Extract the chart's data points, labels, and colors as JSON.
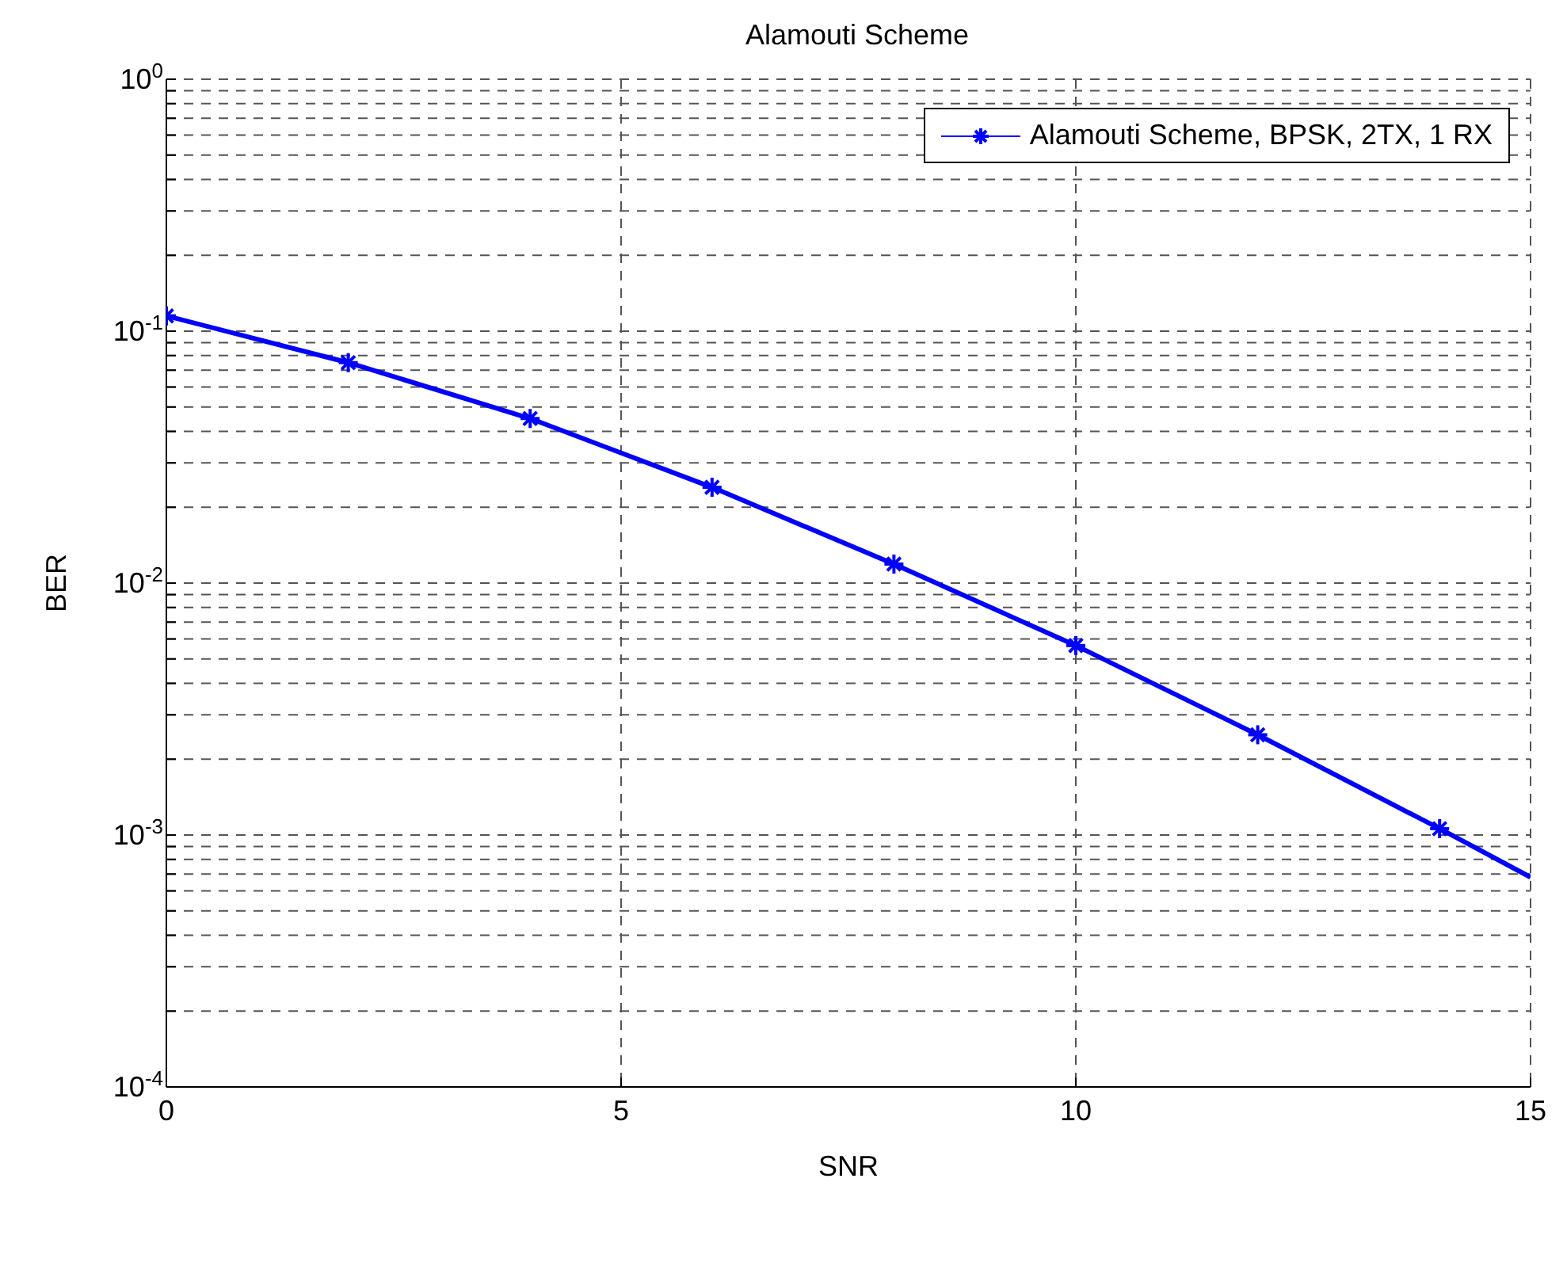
{
  "chart_data": {
    "type": "line",
    "title": "Alamouti Scheme",
    "xlabel": "SNR",
    "ylabel": "BER",
    "x": [
      0,
      2,
      4,
      6,
      8,
      10,
      12,
      14,
      15
    ],
    "series": [
      {
        "name": "Alamouti Scheme, BPSK, 2TX, 1 RX",
        "color": "#0000ff",
        "values": [
          0.115,
          0.075,
          0.045,
          0.024,
          0.0119,
          0.00565,
          0.0025,
          0.00106,
          0.00068
        ]
      }
    ],
    "xlim": [
      0,
      15
    ],
    "xticks": [
      0,
      5,
      10,
      15
    ],
    "ylim": [
      0.0001,
      1
    ],
    "yticks": [
      {
        "value": 0.0001,
        "label": "10$^{-4}$"
      },
      {
        "value": 0.0002,
        "label": null
      },
      {
        "value": 0.0003,
        "label": null
      },
      {
        "value": 0.0004,
        "label": null
      },
      {
        "value": 0.0005,
        "label": null
      },
      {
        "value": 0.0006,
        "label": null
      },
      {
        "value": 0.0007,
        "label": null
      },
      {
        "value": 0.0008,
        "label": null
      },
      {
        "value": 0.0009,
        "label": null
      },
      {
        "value": 0.001,
        "label": "10$^{-3}$"
      },
      {
        "value": 0.002,
        "label": null
      },
      {
        "value": 0.003,
        "label": null
      },
      {
        "value": 0.004,
        "label": null
      },
      {
        "value": 0.005,
        "label": null
      },
      {
        "value": 0.006,
        "label": null
      },
      {
        "value": 0.007,
        "label": null
      },
      {
        "value": 0.008,
        "label": null
      },
      {
        "value": 0.009,
        "label": null
      },
      {
        "value": 0.01,
        "label": "10$^{-2}$"
      },
      {
        "value": 0.02,
        "label": null
      },
      {
        "value": 0.03,
        "label": null
      },
      {
        "value": 0.04,
        "label": null
      },
      {
        "value": 0.05,
        "label": null
      },
      {
        "value": 0.06,
        "label": null
      },
      {
        "value": 0.07,
        "label": null
      },
      {
        "value": 0.08,
        "label": null
      },
      {
        "value": 0.09,
        "label": null
      },
      {
        "value": 0.1,
        "label": "10$^{-1}$"
      },
      {
        "value": 0.2,
        "label": null
      },
      {
        "value": 0.3,
        "label": null
      },
      {
        "value": 0.4,
        "label": null
      },
      {
        "value": 0.5,
        "label": null
      },
      {
        "value": 0.6,
        "label": null
      },
      {
        "value": 0.7,
        "label": null
      },
      {
        "value": 0.8,
        "label": null
      },
      {
        "value": 0.9,
        "label": null
      },
      {
        "value": 1,
        "label": "10$^{0}$"
      }
    ],
    "log": "y",
    "grid": true,
    "legend": "top right",
    "marker": "cross",
    "line_style": "solid"
  }
}
